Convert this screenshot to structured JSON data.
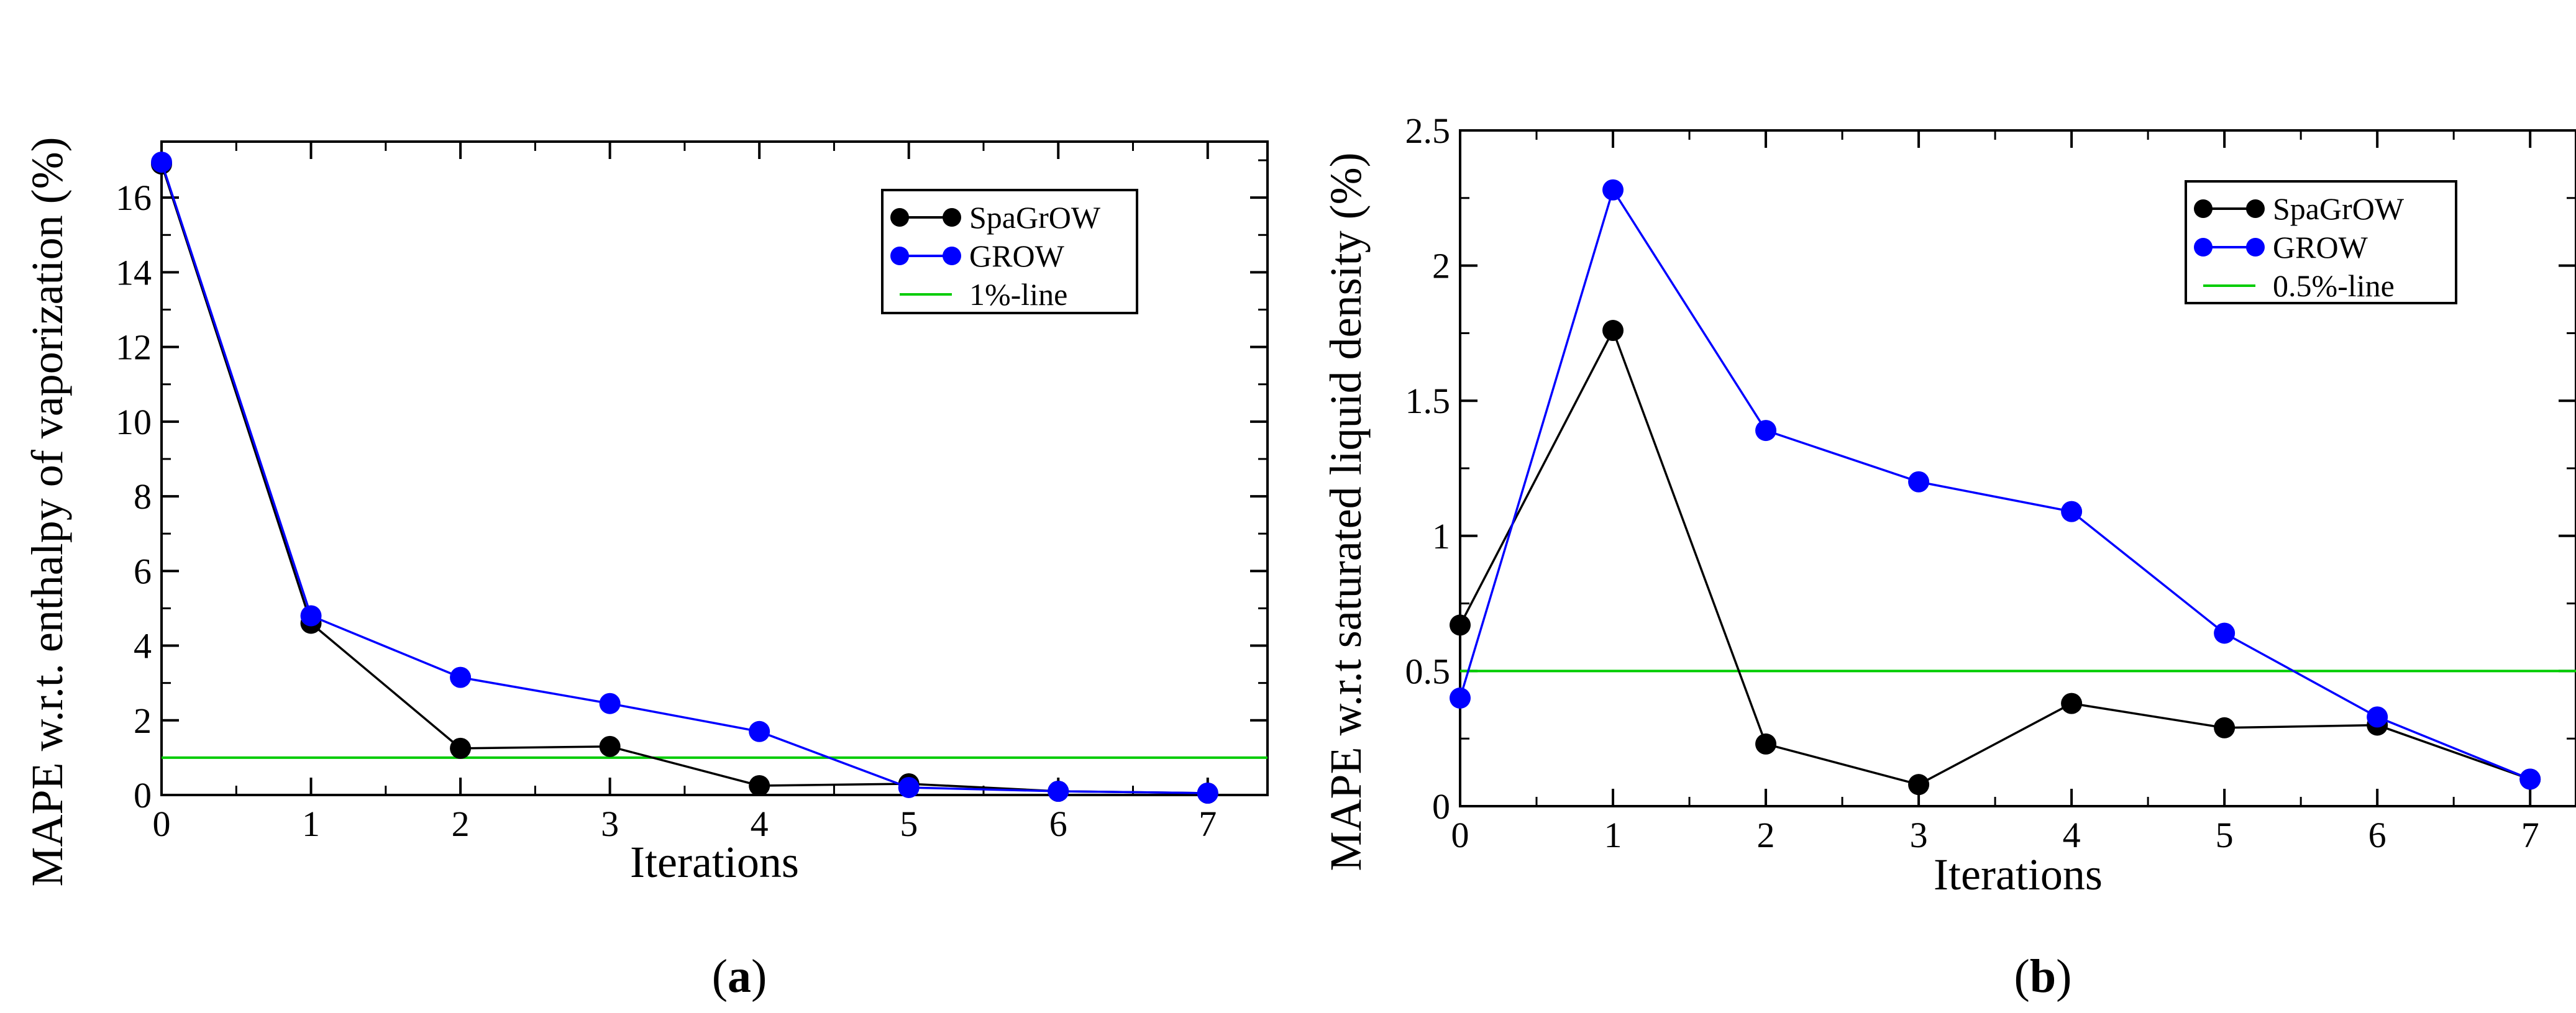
{
  "colors": {
    "spagrow": "#000000",
    "grow": "#0000ff",
    "threshold": "#00cc00"
  },
  "chart_data": [
    {
      "type": "line",
      "panel_label": {
        "open": "(",
        "letter": "a",
        "close": ")"
      },
      "xlabel": "Iterations",
      "ylabel": "MAPE w.r.t. enthalpy of vaporization (%)",
      "xlim": [
        0,
        7.4
      ],
      "ylim": [
        0,
        17.5
      ],
      "xticks": [
        0,
        1,
        2,
        3,
        4,
        5,
        6,
        7
      ],
      "yticks": [
        0,
        2,
        4,
        6,
        8,
        10,
        12,
        14,
        16
      ],
      "series": [
        {
          "name": "SpaGrOW",
          "color_key": "spagrow",
          "x": [
            0,
            1,
            2,
            3,
            4,
            5,
            6,
            7
          ],
          "values": [
            16.9,
            4.6,
            1.25,
            1.3,
            0.25,
            0.3,
            0.1,
            0.05
          ]
        },
        {
          "name": "GROW",
          "color_key": "grow",
          "x": [
            0,
            1,
            2,
            3,
            4,
            5,
            6,
            7
          ],
          "values": [
            16.95,
            4.8,
            3.15,
            2.45,
            1.7,
            0.2,
            0.1,
            0.05
          ]
        }
      ],
      "hline": {
        "name": "1%-line",
        "color_key": "threshold",
        "value": 1.0
      },
      "legend_position": "top-right"
    },
    {
      "type": "line",
      "panel_label": {
        "open": "(",
        "letter": "b",
        "close": ")"
      },
      "xlabel": "Iterations",
      "ylabel": "MAPE w.r.t saturated liquid density (%)",
      "xlim": [
        0,
        7.3
      ],
      "ylim": [
        0,
        2.5
      ],
      "xticks": [
        0,
        1,
        2,
        3,
        4,
        5,
        6,
        7
      ],
      "yticks": [
        0,
        0.5,
        1,
        1.5,
        2,
        2.5
      ],
      "series": [
        {
          "name": "SpaGrOW",
          "color_key": "spagrow",
          "x": [
            0,
            1,
            2,
            3,
            4,
            5,
            6,
            7
          ],
          "values": [
            0.67,
            1.76,
            0.23,
            0.08,
            0.38,
            0.29,
            0.3,
            0.1
          ]
        },
        {
          "name": "GROW",
          "color_key": "grow",
          "x": [
            0,
            1,
            2,
            3,
            4,
            5,
            6,
            7
          ],
          "values": [
            0.4,
            2.28,
            1.39,
            1.2,
            1.09,
            0.64,
            0.33,
            0.1
          ]
        }
      ],
      "hline": {
        "name": "0.5%-line",
        "color_key": "threshold",
        "value": 0.5
      },
      "legend_position": "top-right"
    }
  ]
}
